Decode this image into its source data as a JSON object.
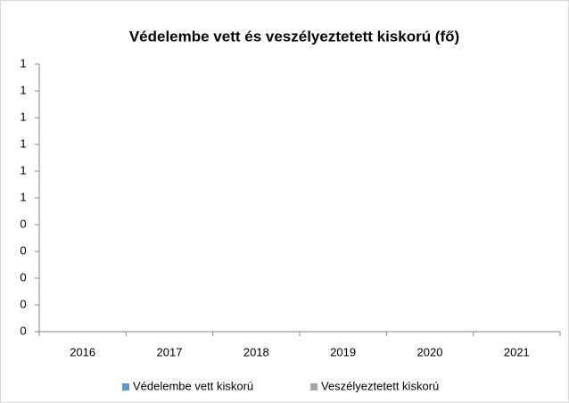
{
  "chart_data": {
    "type": "bar",
    "title": "Védelembe vett és veszélyeztetett kiskorú (fő)",
    "categories": [
      "2016",
      "2017",
      "2018",
      "2019",
      "2020",
      "2021"
    ],
    "series": [
      {
        "name": "Védelembe vett kiskorú",
        "color": "#5b9bd5",
        "values": [
          0,
          0,
          0,
          0,
          0,
          0
        ]
      },
      {
        "name": "Veszélyeztetett kiskorú",
        "color": "#a5a5a5",
        "values": [
          0,
          0,
          0,
          0,
          0,
          0
        ]
      }
    ],
    "ylim": [
      0,
      1
    ],
    "yticks": [
      0,
      {
        "value": 0.1,
        "label": "0"
      },
      {
        "value": 0.2,
        "label": "0"
      },
      {
        "value": 0.3,
        "label": "0"
      },
      {
        "value": 0.4,
        "label": "0"
      },
      {
        "value": 0.5,
        "label": "1"
      },
      {
        "value": 0.6,
        "label": "1"
      },
      {
        "value": 0.7,
        "label": "1"
      },
      {
        "value": 0.8,
        "label": "1"
      },
      {
        "value": 0.9,
        "label": "1"
      },
      1
    ],
    "legend": "bottom"
  }
}
